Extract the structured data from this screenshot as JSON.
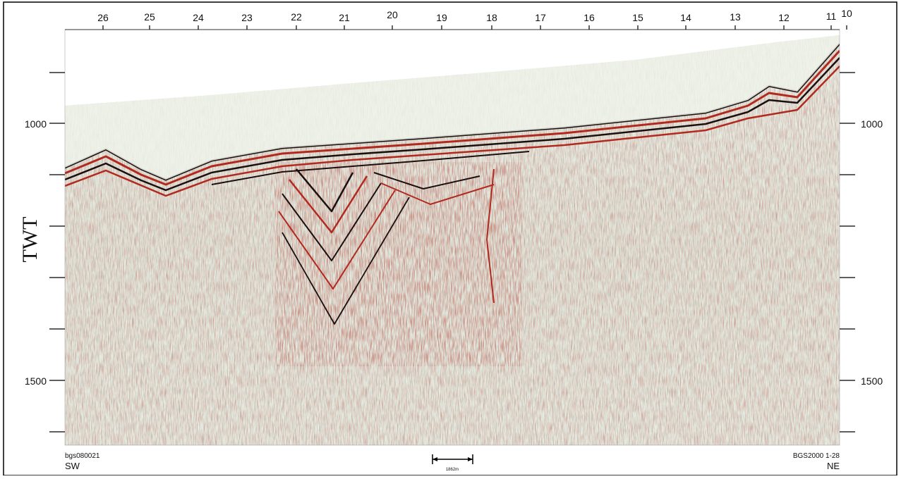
{
  "top_labels": [
    "26",
    "25",
    "24",
    "23",
    "22",
    "21",
    "20",
    "19",
    "18",
    "17",
    "16",
    "15",
    "14",
    "13",
    "12",
    "11",
    "10"
  ],
  "axis_title": "TWT",
  "left_ticks": [
    "1000",
    "1500"
  ],
  "right_ticks": [
    "1000",
    "1500"
  ],
  "footer": {
    "left_id": "bgs080021",
    "left_dir": "SW",
    "right_id": "BGS2000 1-28",
    "right_dir": "NE",
    "scale": "1862m"
  }
}
